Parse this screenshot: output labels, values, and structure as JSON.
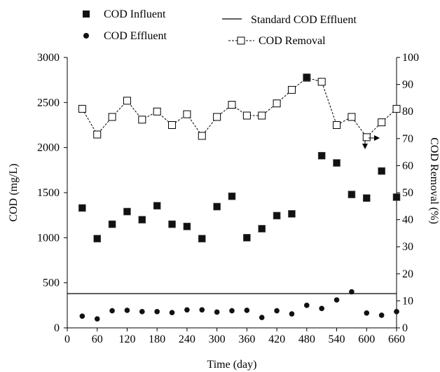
{
  "chart_data": {
    "type": "scatter",
    "xlabel": "Time (day)",
    "ylabel": "COD (mg/L)",
    "y2label": "COD Removal (%)",
    "xlim": [
      0,
      660
    ],
    "ylim": [
      0,
      3000
    ],
    "y2lim": [
      0,
      100
    ],
    "xticks": [
      0,
      60,
      120,
      180,
      240,
      300,
      360,
      420,
      480,
      540,
      600,
      660
    ],
    "yticks": [
      0,
      500,
      1000,
      1500,
      2000,
      2500,
      3000
    ],
    "y2ticks": [
      0,
      10,
      20,
      30,
      40,
      50,
      60,
      70,
      80,
      90,
      100
    ],
    "legend_position": "top",
    "standard_effluent": 380,
    "series": [
      {
        "name": "COD Influent",
        "axis": "left",
        "marker": "filled-square",
        "x": [
          30,
          60,
          90,
          120,
          150,
          180,
          210,
          240,
          270,
          300,
          330,
          360,
          390,
          420,
          450,
          480,
          510,
          540,
          570,
          600,
          630,
          660
        ],
        "y": [
          1330,
          990,
          1150,
          1290,
          1200,
          1355,
          1150,
          1125,
          990,
          1345,
          1460,
          1000,
          1100,
          1245,
          1265,
          2780,
          1910,
          1830,
          1480,
          1440,
          1740,
          1450
        ]
      },
      {
        "name": "COD Effluent",
        "axis": "left",
        "marker": "filled-circle",
        "x": [
          30,
          60,
          90,
          120,
          150,
          180,
          210,
          240,
          270,
          300,
          330,
          360,
          390,
          420,
          450,
          480,
          510,
          540,
          570,
          600,
          630,
          660
        ],
        "y": [
          130,
          100,
          190,
          195,
          180,
          180,
          170,
          200,
          200,
          175,
          190,
          195,
          115,
          190,
          155,
          250,
          215,
          310,
          400,
          165,
          140,
          180
        ]
      },
      {
        "name": "Standard COD Effluent",
        "axis": "left",
        "marker": "line",
        "x": [
          0,
          660
        ],
        "y": [
          380,
          380
        ]
      },
      {
        "name": "COD Removal",
        "axis": "right",
        "marker": "open-square-dashed",
        "x": [
          30,
          60,
          90,
          120,
          150,
          180,
          210,
          240,
          270,
          300,
          330,
          360,
          390,
          420,
          450,
          480,
          510,
          540,
          570,
          600,
          630,
          660
        ],
        "y": [
          81,
          71.5,
          78,
          84,
          77,
          80,
          75,
          79,
          71,
          78,
          82.5,
          78.5,
          78.5,
          83,
          88,
          92.5,
          91,
          75,
          78,
          70.5,
          76,
          81
        ]
      }
    ]
  }
}
